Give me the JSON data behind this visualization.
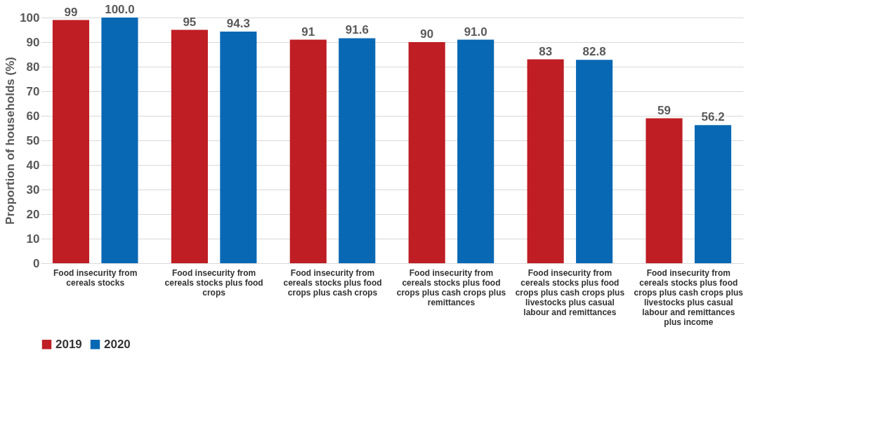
{
  "chart_data": {
    "type": "bar",
    "ylabel": "Proportion of households (%)",
    "categories": [
      "Food insecurity from cereals stocks",
      "Food insecurity from cereals stocks plus food crops",
      "Food insecurity from cereals stocks plus food crops plus cash crops",
      "Food insecurity from cereals stocks plus food crops plus cash crops plus remittances",
      "Food insecurity from cereals stocks plus food crops plus cash crops plus livestocks plus casual labour and remittances",
      "Food insecurity from cereals stocks plus food crops plus cash crops plus livestocks plus casual labour and remittances plus income"
    ],
    "series": [
      {
        "name": "2019",
        "color": "#be1e24",
        "values": [
          99,
          95,
          91,
          90,
          83,
          59
        ],
        "value_labels": [
          "99",
          "95",
          "91",
          "90",
          "83",
          "59"
        ]
      },
      {
        "name": "2020",
        "color": "#0868b4",
        "values": [
          100.0,
          94.3,
          91.6,
          91.0,
          82.8,
          56.2
        ],
        "value_labels": [
          "100.0",
          "94.3",
          "91.6",
          "91.0",
          "82.8",
          "56.2"
        ]
      }
    ],
    "ylim": [
      0,
      100
    ],
    "yticks": [
      0,
      10,
      20,
      30,
      40,
      50,
      60,
      70,
      80,
      90,
      100
    ],
    "grid": "y",
    "legend": "bottom"
  }
}
